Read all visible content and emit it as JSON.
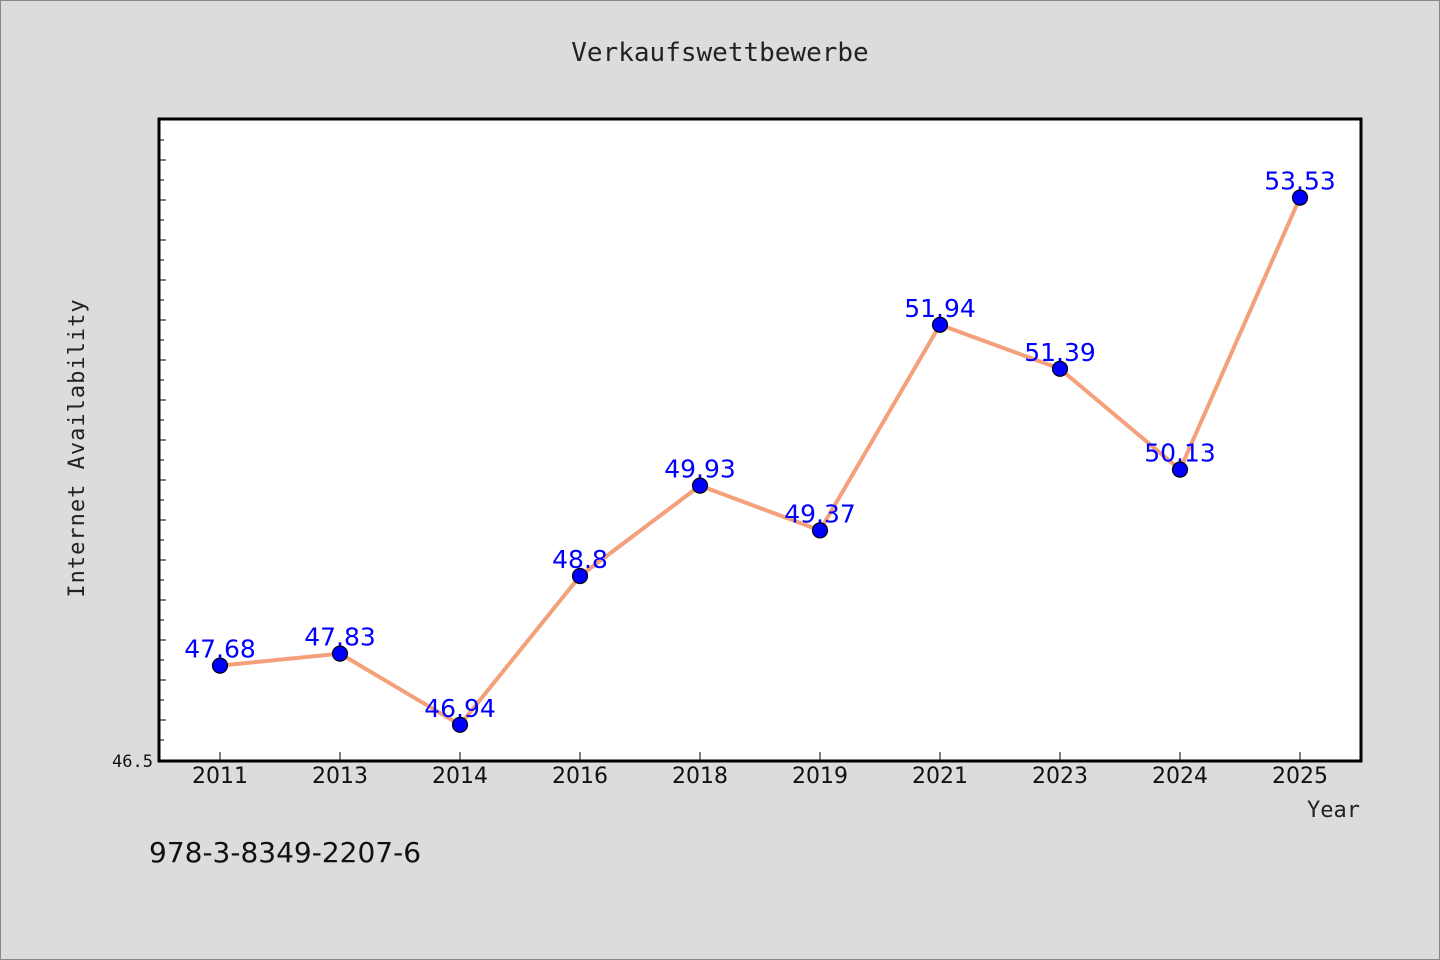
{
  "page": {
    "background": "#dcdcdc",
    "frame_color": "#888888"
  },
  "chart_data": {
    "type": "line",
    "title": "Verkaufswettbewerbe",
    "xlabel": "Year",
    "ylabel": "Internet Availability",
    "categories": [
      "2011",
      "2013",
      "2014",
      "2016",
      "2018",
      "2019",
      "2021",
      "2023",
      "2024",
      "2025"
    ],
    "series": [
      {
        "values": [
          47.68,
          47.83,
          46.94,
          48.8,
          49.93,
          49.37,
          51.94,
          51.39,
          50.13,
          53.53
        ]
      }
    ],
    "data_labels": [
      "47.68",
      "47.83",
      "46.94",
      "48.8",
      "49.93",
      "49.37",
      "51.94",
      "51.39",
      "50.13",
      "53.53"
    ],
    "ylim": [
      46.5,
      54.5
    ],
    "ytick_labels": [
      "46.5"
    ],
    "grid": false,
    "colors": {
      "line": "#f4a07a",
      "marker": "#0000ff",
      "label": "#0000ff",
      "plot_bg": "#ffffff"
    }
  },
  "footer": {
    "isbn": "978-3-8349-2207-6"
  }
}
